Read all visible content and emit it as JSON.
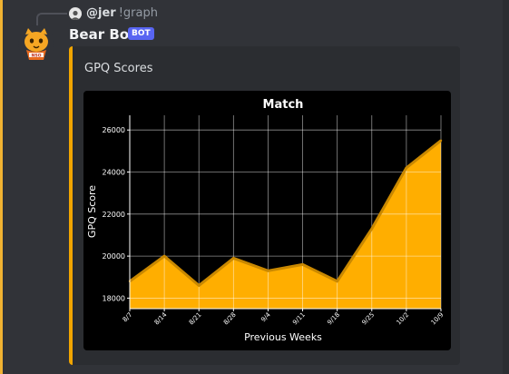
{
  "reply": {
    "username": "@jer",
    "command": "!graph"
  },
  "message": {
    "username": "Bear Bot",
    "badge": "BOT"
  },
  "embed": {
    "title": "GPQ Scores",
    "accent_color": "#f1a500"
  },
  "chart_data": {
    "type": "area",
    "title": "Match",
    "xlabel": "Previous Weeks",
    "ylabel": "GPQ Score",
    "categories": [
      "8/7",
      "8/14",
      "8/21",
      "8/28",
      "9/4",
      "9/11",
      "9/18",
      "9/25",
      "10/2",
      "10/9"
    ],
    "values": [
      18800,
      20000,
      18600,
      19900,
      19300,
      19600,
      18800,
      21300,
      24200,
      25500
    ],
    "ylim": [
      17500,
      26700
    ],
    "yticks": [
      18000,
      20000,
      22000,
      24000,
      26000
    ],
    "grid": true,
    "fill_color": "#ffae00",
    "line_color": "#c98800"
  }
}
